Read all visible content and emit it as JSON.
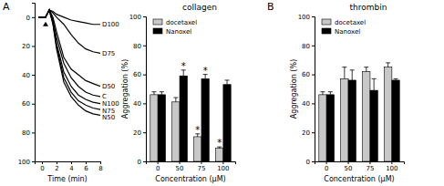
{
  "chart_data": [
    {
      "type": "line",
      "panel": "A",
      "xlabel": "Time (min)",
      "x": [
        -0.5,
        0,
        0.5,
        1,
        1.5,
        2,
        3,
        4,
        5,
        6,
        7,
        8
      ],
      "series": [
        {
          "name": "D100",
          "color": "#000000",
          "line_style": "solid",
          "values": [
            0,
            0,
            0,
            -5,
            -4,
            -2,
            0,
            2,
            3,
            4,
            5,
            5
          ]
        },
        {
          "name": "D75",
          "color": "#000000",
          "line_style": "solid",
          "values": [
            0,
            0,
            0,
            -5,
            -3,
            0,
            5,
            12,
            18,
            22,
            24,
            25
          ]
        },
        {
          "name": "D50",
          "color": "#000000",
          "line_style": "solid",
          "values": [
            0,
            0,
            0,
            -5,
            0,
            10,
            28,
            36,
            40,
            44,
            46,
            48
          ]
        },
        {
          "name": "C",
          "color": "#000000",
          "line_style": "solid",
          "values": [
            0,
            0,
            0,
            -5,
            2,
            14,
            32,
            42,
            48,
            52,
            54,
            55
          ]
        },
        {
          "name": "N100",
          "color": "#000000",
          "line_style": "solid",
          "values": [
            0,
            0,
            0,
            -5,
            3,
            18,
            38,
            48,
            54,
            57,
            59,
            60
          ]
        },
        {
          "name": "N75",
          "color": "#000000",
          "line_style": "solid",
          "values": [
            0,
            0,
            0,
            -5,
            4,
            20,
            42,
            52,
            58,
            61,
            63,
            64
          ]
        },
        {
          "name": "N50",
          "color": "#000000",
          "line_style": "solid",
          "values": [
            0,
            0,
            0,
            -5,
            5,
            22,
            45,
            55,
            61,
            65,
            67,
            68
          ]
        }
      ],
      "xlim": [
        -1,
        8
      ],
      "xticks": [
        0,
        2,
        4,
        6,
        8
      ],
      "ylim": [
        -10,
        100
      ],
      "yticks": [
        0,
        20,
        40,
        60,
        80,
        100
      ]
    },
    {
      "type": "bar",
      "title": "collagen",
      "xlabel": "Concentration (μM)",
      "ylabel": "Aggregation (%)",
      "categories": [
        "0",
        "50",
        "75",
        "100"
      ],
      "series": [
        {
          "name": "docetaxel",
          "color": "#c8c8c8",
          "values": [
            46,
            41,
            17,
            9
          ],
          "errors": [
            2,
            3,
            2,
            1
          ],
          "significance": [
            null,
            null,
            "*",
            "*"
          ]
        },
        {
          "name": "Nanoxel",
          "color": "#000000",
          "values": [
            46,
            59,
            57,
            53
          ],
          "errors": [
            2,
            4,
            3,
            3
          ],
          "significance": [
            null,
            "*",
            "*",
            null
          ]
        }
      ],
      "ylim": [
        0,
        100
      ],
      "yticks": [
        0,
        20,
        40,
        60,
        80,
        100
      ],
      "legend": "upper left"
    },
    {
      "type": "bar",
      "panel": "B",
      "title": "thrombin",
      "xlabel": "Concentration (μM)",
      "ylabel": "Aggregation (%)",
      "categories": [
        "0",
        "50",
        "75",
        "100"
      ],
      "series": [
        {
          "name": "docetaxel",
          "color": "#c8c8c8",
          "values": [
            46,
            57,
            62,
            65
          ],
          "errors": [
            2,
            8,
            3,
            3
          ]
        },
        {
          "name": "Nanoxel",
          "color": "#000000",
          "values": [
            46,
            56,
            49,
            56
          ],
          "errors": [
            2,
            7,
            8,
            1
          ]
        }
      ],
      "ylim": [
        0,
        100
      ],
      "yticks": [
        0,
        20,
        40,
        60,
        80,
        100
      ],
      "legend": "upper left"
    }
  ]
}
